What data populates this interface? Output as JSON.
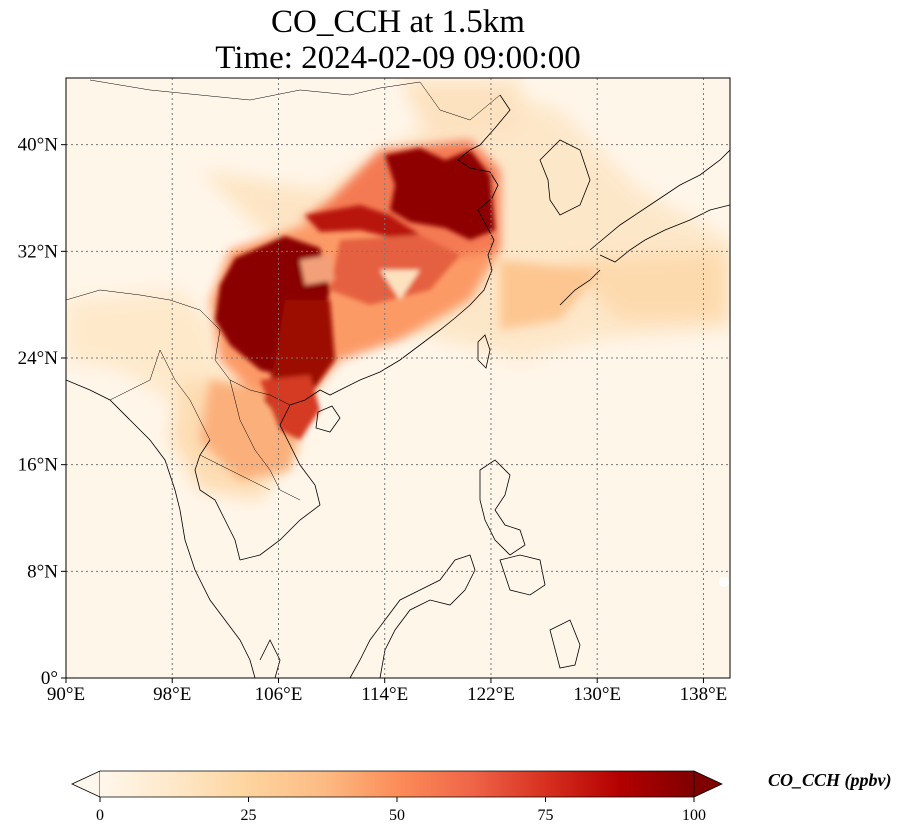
{
  "title": {
    "line1": "CO_CCH at 1.5km",
    "line2": "Time: 2024-02-09 09:00:00"
  },
  "map": {
    "projection": "PlateCarree",
    "lon_range": [
      90,
      140
    ],
    "lat_range": [
      0,
      45
    ],
    "gridlines": "dotted",
    "lon_ticks": [
      {
        "value": 90,
        "label": "90°E"
      },
      {
        "value": 98,
        "label": "98°E"
      },
      {
        "value": 106,
        "label": "106°E"
      },
      {
        "value": 114,
        "label": "114°E"
      },
      {
        "value": 122,
        "label": "122°E"
      },
      {
        "value": 130,
        "label": "130°E"
      },
      {
        "value": 138,
        "label": "138°E"
      }
    ],
    "lat_ticks": [
      {
        "value": 0,
        "label": "0°"
      },
      {
        "value": 8,
        "label": "8°N"
      },
      {
        "value": 16,
        "label": "16°N"
      },
      {
        "value": 24,
        "label": "24°N"
      },
      {
        "value": 32,
        "label": "32°N"
      },
      {
        "value": 40,
        "label": "40°N"
      }
    ]
  },
  "colorbar": {
    "label": "CO_CCH (ppbv)",
    "colormap": "OrRd",
    "min": 0,
    "max": 100,
    "extend": "both",
    "ticks": [
      {
        "value": 0,
        "label": "0"
      },
      {
        "value": 25,
        "label": "25"
      },
      {
        "value": 50,
        "label": "50"
      },
      {
        "value": 75,
        "label": "75"
      },
      {
        "value": 100,
        "label": "100"
      }
    ],
    "colors": [
      "#fff7ec",
      "#fee8c8",
      "#fdd49e",
      "#fdbb84",
      "#fc8d59",
      "#ef6548",
      "#d7301f",
      "#b30000",
      "#7f0000"
    ]
  }
}
